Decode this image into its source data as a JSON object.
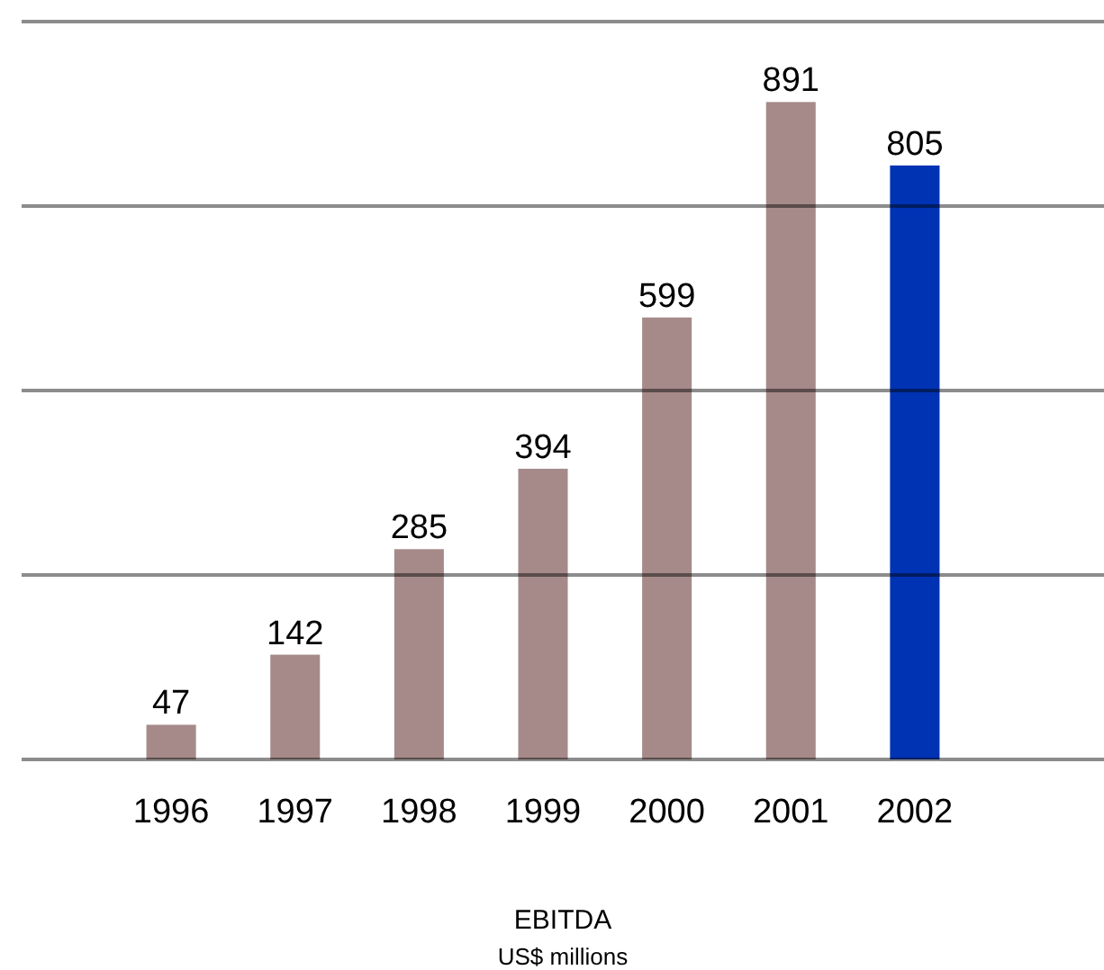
{
  "chart_data": {
    "type": "bar",
    "title": "EBITDA",
    "subtitle": "US$ millions",
    "categories": [
      "1996",
      "1997",
      "1998",
      "1999",
      "2000",
      "2001",
      "2002"
    ],
    "values": [
      47,
      142,
      285,
      394,
      599,
      891,
      805
    ],
    "colors": [
      "#a68a8a",
      "#a68a8a",
      "#a68a8a",
      "#a68a8a",
      "#a68a8a",
      "#a68a8a",
      "#0033b3"
    ],
    "ylim": [
      0,
      1000
    ],
    "yticks": [
      {
        "value": 0,
        "label": null
      },
      {
        "value": 250,
        "label": null
      },
      {
        "value": 500,
        "label": null
      },
      {
        "value": 750,
        "label": null
      },
      {
        "value": 1000,
        "label": null
      }
    ],
    "grid": "y",
    "data_labels": true,
    "tick_labels": "x"
  }
}
